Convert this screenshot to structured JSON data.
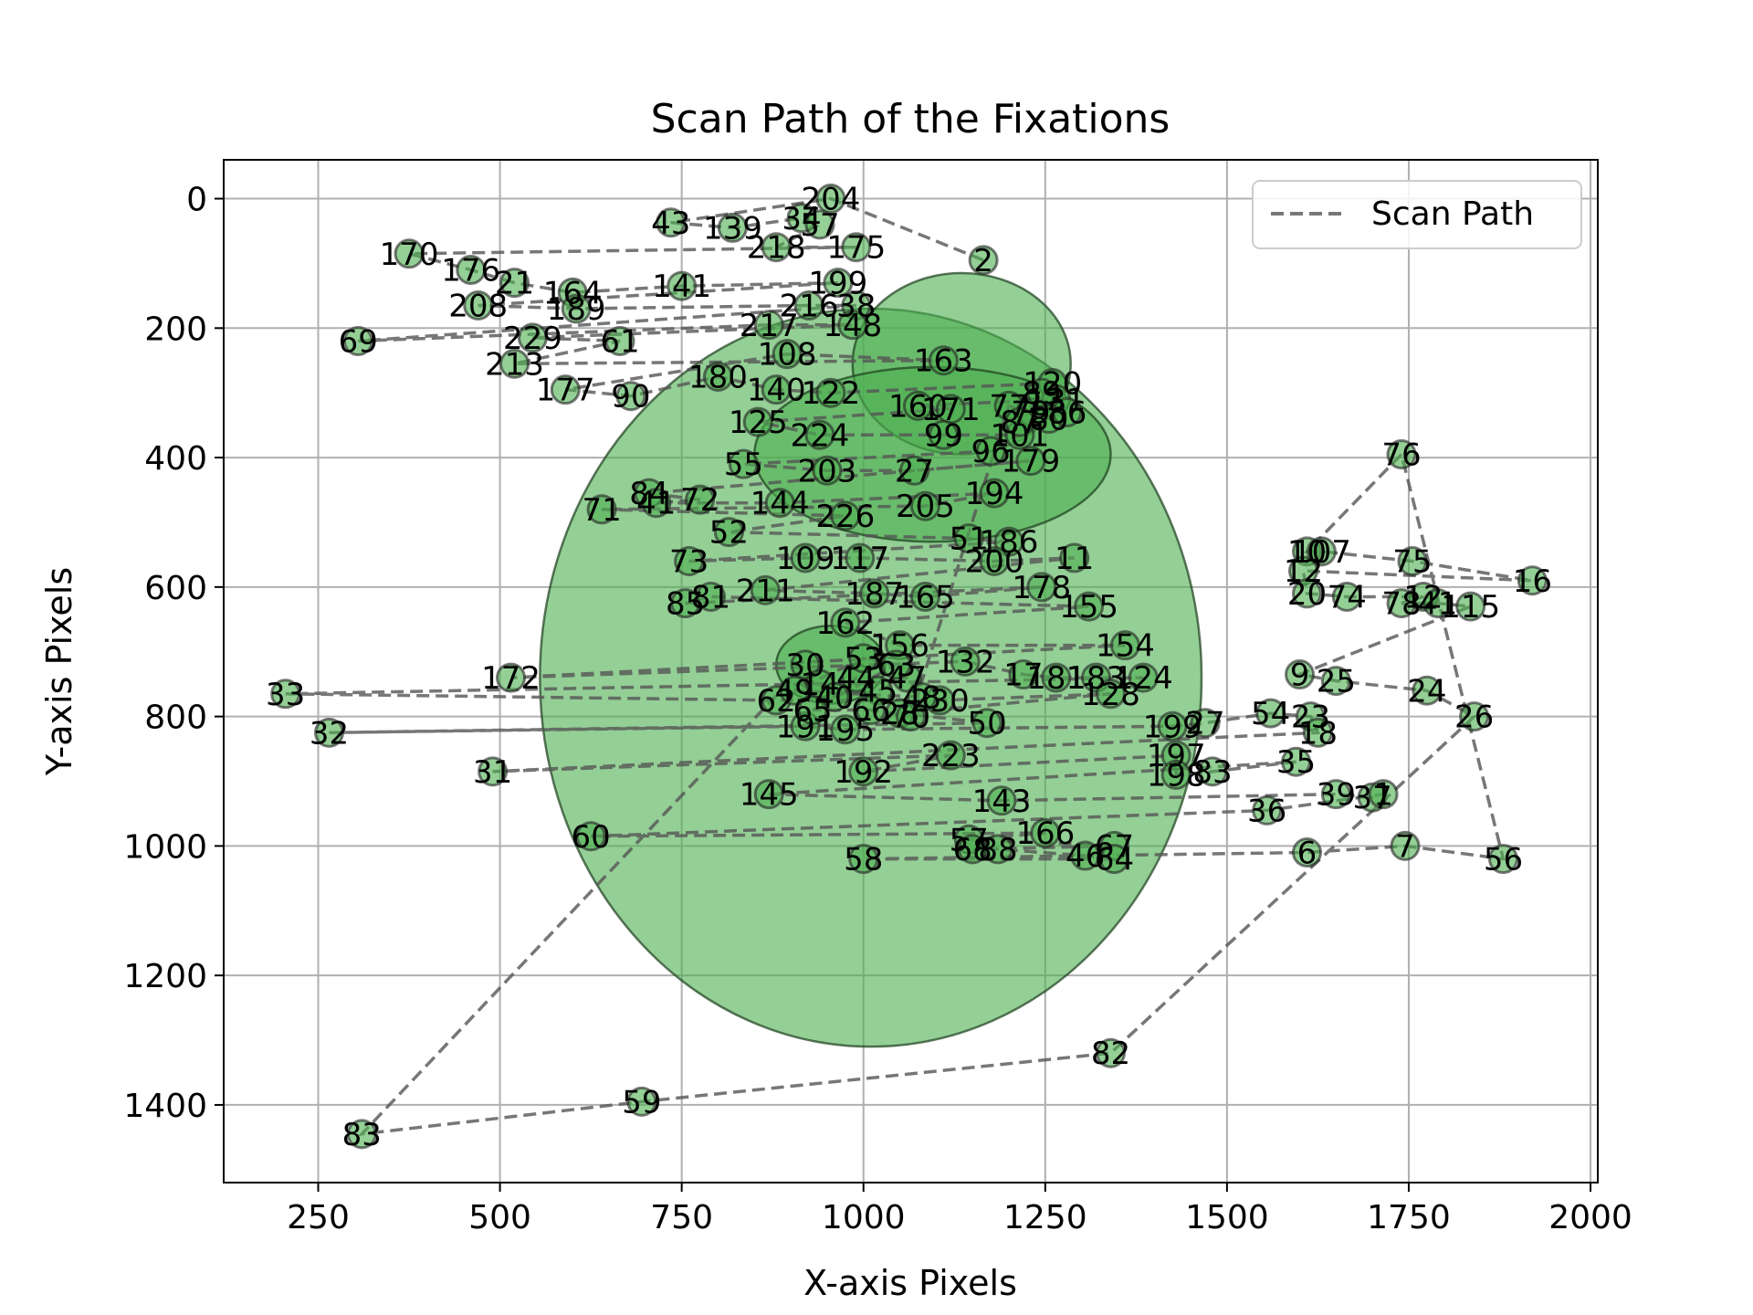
{
  "chart_data": {
    "type": "scatter",
    "title": "Scan Path of the Fixations",
    "xlabel": "X-axis Pixels",
    "ylabel": "Y-axis Pixels",
    "xlim": [
      120,
      2010
    ],
    "ylim": [
      1520,
      -60
    ],
    "x_ticks": [
      250,
      500,
      750,
      1000,
      1250,
      1500,
      1750,
      2000
    ],
    "y_ticks": [
      0,
      200,
      400,
      600,
      800,
      1000,
      1200,
      1400
    ],
    "grid": true,
    "legend": {
      "position": "top-right",
      "entries": [
        "Scan Path"
      ]
    },
    "colors": {
      "point_fill": "#4caf50",
      "ellipse_fill": "#4caf50",
      "path": "#555555"
    },
    "ellipses": [
      {
        "cx": 1010,
        "cy": 740,
        "rx": 455,
        "ry": 570
      },
      {
        "cx": 1135,
        "cy": 255,
        "rx": 150,
        "ry": 140
      },
      {
        "cx": 1095,
        "cy": 395,
        "rx": 245,
        "ry": 135
      },
      {
        "cx": 955,
        "cy": 720,
        "rx": 75,
        "ry": 60
      }
    ],
    "fixations": [
      {
        "id": 2,
        "x": 1165,
        "y": 95
      },
      {
        "id": 204,
        "x": 955,
        "y": 0
      },
      {
        "id": 43,
        "x": 735,
        "y": 37
      },
      {
        "id": 139,
        "x": 820,
        "y": 45
      },
      {
        "id": 34,
        "x": 915,
        "y": 30
      },
      {
        "id": 57,
        "x": 940,
        "y": 40
      },
      {
        "id": 218,
        "x": 880,
        "y": 75
      },
      {
        "id": 175,
        "x": 990,
        "y": 75
      },
      {
        "id": 170,
        "x": 375,
        "y": 85
      },
      {
        "id": 176,
        "x": 460,
        "y": 110
      },
      {
        "id": 21,
        "x": 520,
        "y": 130
      },
      {
        "id": 164,
        "x": 600,
        "y": 145
      },
      {
        "id": 141,
        "x": 750,
        "y": 135
      },
      {
        "id": 199,
        "x": 965,
        "y": 130
      },
      {
        "id": 208,
        "x": 470,
        "y": 165
      },
      {
        "id": 189,
        "x": 605,
        "y": 170
      },
      {
        "id": 216,
        "x": 925,
        "y": 165
      },
      {
        "id": 38,
        "x": 990,
        "y": 165
      },
      {
        "id": 69,
        "x": 305,
        "y": 220
      },
      {
        "id": 217,
        "x": 870,
        "y": 195
      },
      {
        "id": 148,
        "x": 985,
        "y": 195
      },
      {
        "id": 229,
        "x": 545,
        "y": 215
      },
      {
        "id": 61,
        "x": 665,
        "y": 220
      },
      {
        "id": 213,
        "x": 520,
        "y": 255
      },
      {
        "id": 163,
        "x": 1110,
        "y": 250
      },
      {
        "id": 108,
        "x": 895,
        "y": 240
      },
      {
        "id": 177,
        "x": 590,
        "y": 295
      },
      {
        "id": 90,
        "x": 680,
        "y": 305
      },
      {
        "id": 180,
        "x": 800,
        "y": 275
      },
      {
        "id": 140,
        "x": 880,
        "y": 295
      },
      {
        "id": 122,
        "x": 955,
        "y": 300
      },
      {
        "id": 120,
        "x": 1260,
        "y": 285
      },
      {
        "id": 131,
        "x": 1265,
        "y": 310
      },
      {
        "id": 160,
        "x": 1075,
        "y": 320
      },
      {
        "id": 171,
        "x": 1120,
        "y": 325
      },
      {
        "id": 125,
        "x": 855,
        "y": 345
      },
      {
        "id": 224,
        "x": 940,
        "y": 365
      },
      {
        "id": 99,
        "x": 1110,
        "y": 365
      },
      {
        "id": 101,
        "x": 1215,
        "y": 365
      },
      {
        "id": 96,
        "x": 1175,
        "y": 390
      },
      {
        "id": 55,
        "x": 835,
        "y": 410
      },
      {
        "id": 203,
        "x": 950,
        "y": 420
      },
      {
        "id": 27,
        "x": 1070,
        "y": 420
      },
      {
        "id": 179,
        "x": 1230,
        "y": 405
      },
      {
        "id": 84,
        "x": 705,
        "y": 455
      },
      {
        "id": 72,
        "x": 775,
        "y": 465
      },
      {
        "id": 41,
        "x": 715,
        "y": 470
      },
      {
        "id": 144,
        "x": 885,
        "y": 470
      },
      {
        "id": 194,
        "x": 1180,
        "y": 455
      },
      {
        "id": 205,
        "x": 1085,
        "y": 475
      },
      {
        "id": 71,
        "x": 640,
        "y": 480
      },
      {
        "id": 226,
        "x": 975,
        "y": 490
      },
      {
        "id": 52,
        "x": 815,
        "y": 515
      },
      {
        "id": 51,
        "x": 1145,
        "y": 525
      },
      {
        "id": 186,
        "x": 1200,
        "y": 530
      },
      {
        "id": 73,
        "x": 760,
        "y": 560
      },
      {
        "id": 109,
        "x": 920,
        "y": 555
      },
      {
        "id": 117,
        "x": 995,
        "y": 555
      },
      {
        "id": 200,
        "x": 1180,
        "y": 560
      },
      {
        "id": 11,
        "x": 1290,
        "y": 555
      },
      {
        "id": 211,
        "x": 865,
        "y": 605
      },
      {
        "id": 187,
        "x": 1015,
        "y": 610
      },
      {
        "id": 165,
        "x": 1085,
        "y": 615
      },
      {
        "id": 178,
        "x": 1245,
        "y": 600
      },
      {
        "id": 85,
        "x": 755,
        "y": 625
      },
      {
        "id": 81,
        "x": 790,
        "y": 615
      },
      {
        "id": 155,
        "x": 1310,
        "y": 630
      },
      {
        "id": 162,
        "x": 975,
        "y": 655
      },
      {
        "id": 156,
        "x": 1050,
        "y": 690
      },
      {
        "id": 154,
        "x": 1360,
        "y": 690
      },
      {
        "id": 172,
        "x": 515,
        "y": 740
      },
      {
        "id": 132,
        "x": 1140,
        "y": 715
      },
      {
        "id": 17,
        "x": 1220,
        "y": 735
      },
      {
        "id": 181,
        "x": 1265,
        "y": 740
      },
      {
        "id": 183,
        "x": 1320,
        "y": 740
      },
      {
        "id": 124,
        "x": 1385,
        "y": 740
      },
      {
        "id": 33,
        "x": 205,
        "y": 765
      },
      {
        "id": 62,
        "x": 880,
        "y": 775
      },
      {
        "id": 230,
        "x": 1105,
        "y": 775
      },
      {
        "id": 128,
        "x": 1340,
        "y": 765
      },
      {
        "id": 28,
        "x": 1050,
        "y": 795
      },
      {
        "id": 50,
        "x": 1170,
        "y": 810
      },
      {
        "id": 32,
        "x": 265,
        "y": 825
      },
      {
        "id": 191,
        "x": 920,
        "y": 815
      },
      {
        "id": 195,
        "x": 975,
        "y": 820
      },
      {
        "id": 199,
        "x": 1425,
        "y": 815
      },
      {
        "id": 27,
        "x": 1470,
        "y": 810
      },
      {
        "id": 54,
        "x": 1560,
        "y": 795
      },
      {
        "id": 23,
        "x": 1615,
        "y": 800
      },
      {
        "id": 18,
        "x": 1625,
        "y": 825
      },
      {
        "id": 31,
        "x": 490,
        "y": 885
      },
      {
        "id": 223,
        "x": 1120,
        "y": 860
      },
      {
        "id": 192,
        "x": 1000,
        "y": 885
      },
      {
        "id": 197,
        "x": 1430,
        "y": 860
      },
      {
        "id": 198,
        "x": 1430,
        "y": 890
      },
      {
        "id": 83,
        "x": 1480,
        "y": 885
      },
      {
        "id": 35,
        "x": 1595,
        "y": 870
      },
      {
        "id": 145,
        "x": 870,
        "y": 920
      },
      {
        "id": 143,
        "x": 1190,
        "y": 930
      },
      {
        "id": 39,
        "x": 1650,
        "y": 920
      },
      {
        "id": 37,
        "x": 1700,
        "y": 925
      },
      {
        "id": 1,
        "x": 1715,
        "y": 920
      },
      {
        "id": 36,
        "x": 1555,
        "y": 945
      },
      {
        "id": 60,
        "x": 625,
        "y": 985
      },
      {
        "id": 166,
        "x": 1250,
        "y": 980
      },
      {
        "id": 57,
        "x": 1145,
        "y": 990
      },
      {
        "id": 67,
        "x": 1345,
        "y": 1000
      },
      {
        "id": 68,
        "x": 1150,
        "y": 1005
      },
      {
        "id": 88,
        "x": 1185,
        "y": 1005
      },
      {
        "id": 46,
        "x": 1305,
        "y": 1015
      },
      {
        "id": 64,
        "x": 1345,
        "y": 1020
      },
      {
        "id": 58,
        "x": 1000,
        "y": 1020
      },
      {
        "id": 6,
        "x": 1610,
        "y": 1010
      },
      {
        "id": 7,
        "x": 1745,
        "y": 1000
      },
      {
        "id": 56,
        "x": 1880,
        "y": 1020
      },
      {
        "id": 76,
        "x": 1740,
        "y": 395
      },
      {
        "id": 10,
        "x": 1610,
        "y": 545
      },
      {
        "id": 107,
        "x": 1630,
        "y": 545
      },
      {
        "id": 75,
        "x": 1755,
        "y": 560
      },
      {
        "id": 16,
        "x": 1920,
        "y": 590
      },
      {
        "id": 12,
        "x": 1605,
        "y": 575
      },
      {
        "id": 20,
        "x": 1610,
        "y": 610
      },
      {
        "id": 74,
        "x": 1665,
        "y": 615
      },
      {
        "id": 12,
        "x": 1770,
        "y": 615
      },
      {
        "id": 78,
        "x": 1740,
        "y": 625
      },
      {
        "id": 41,
        "x": 1790,
        "y": 625
      },
      {
        "id": 115,
        "x": 1835,
        "y": 630
      },
      {
        "id": 9,
        "x": 1600,
        "y": 735
      },
      {
        "id": 25,
        "x": 1650,
        "y": 745
      },
      {
        "id": 24,
        "x": 1775,
        "y": 760
      },
      {
        "id": 26,
        "x": 1840,
        "y": 800
      },
      {
        "id": 82,
        "x": 1340,
        "y": 1320
      },
      {
        "id": 59,
        "x": 695,
        "y": 1395
      },
      {
        "id": 83,
        "x": 310,
        "y": 1445
      },
      {
        "id": 30,
        "x": 920,
        "y": 720
      },
      {
        "id": 14,
        "x": 940,
        "y": 750
      },
      {
        "id": 40,
        "x": 960,
        "y": 770
      },
      {
        "id": 44,
        "x": 990,
        "y": 740
      },
      {
        "id": 45,
        "x": 1020,
        "y": 760
      },
      {
        "id": 47,
        "x": 1060,
        "y": 740
      },
      {
        "id": 48,
        "x": 1080,
        "y": 770
      },
      {
        "id": 49,
        "x": 905,
        "y": 760
      },
      {
        "id": 53,
        "x": 1000,
        "y": 710
      },
      {
        "id": 63,
        "x": 1045,
        "y": 720
      },
      {
        "id": 65,
        "x": 930,
        "y": 790
      },
      {
        "id": 66,
        "x": 1010,
        "y": 790
      },
      {
        "id": 70,
        "x": 1065,
        "y": 800
      },
      {
        "id": 77,
        "x": 1200,
        "y": 320
      },
      {
        "id": 79,
        "x": 1230,
        "y": 330
      },
      {
        "id": 80,
        "x": 1255,
        "y": 340
      },
      {
        "id": 86,
        "x": 1280,
        "y": 330
      },
      {
        "id": 87,
        "x": 1215,
        "y": 345
      },
      {
        "id": 89,
        "x": 1245,
        "y": 300
      }
    ]
  }
}
